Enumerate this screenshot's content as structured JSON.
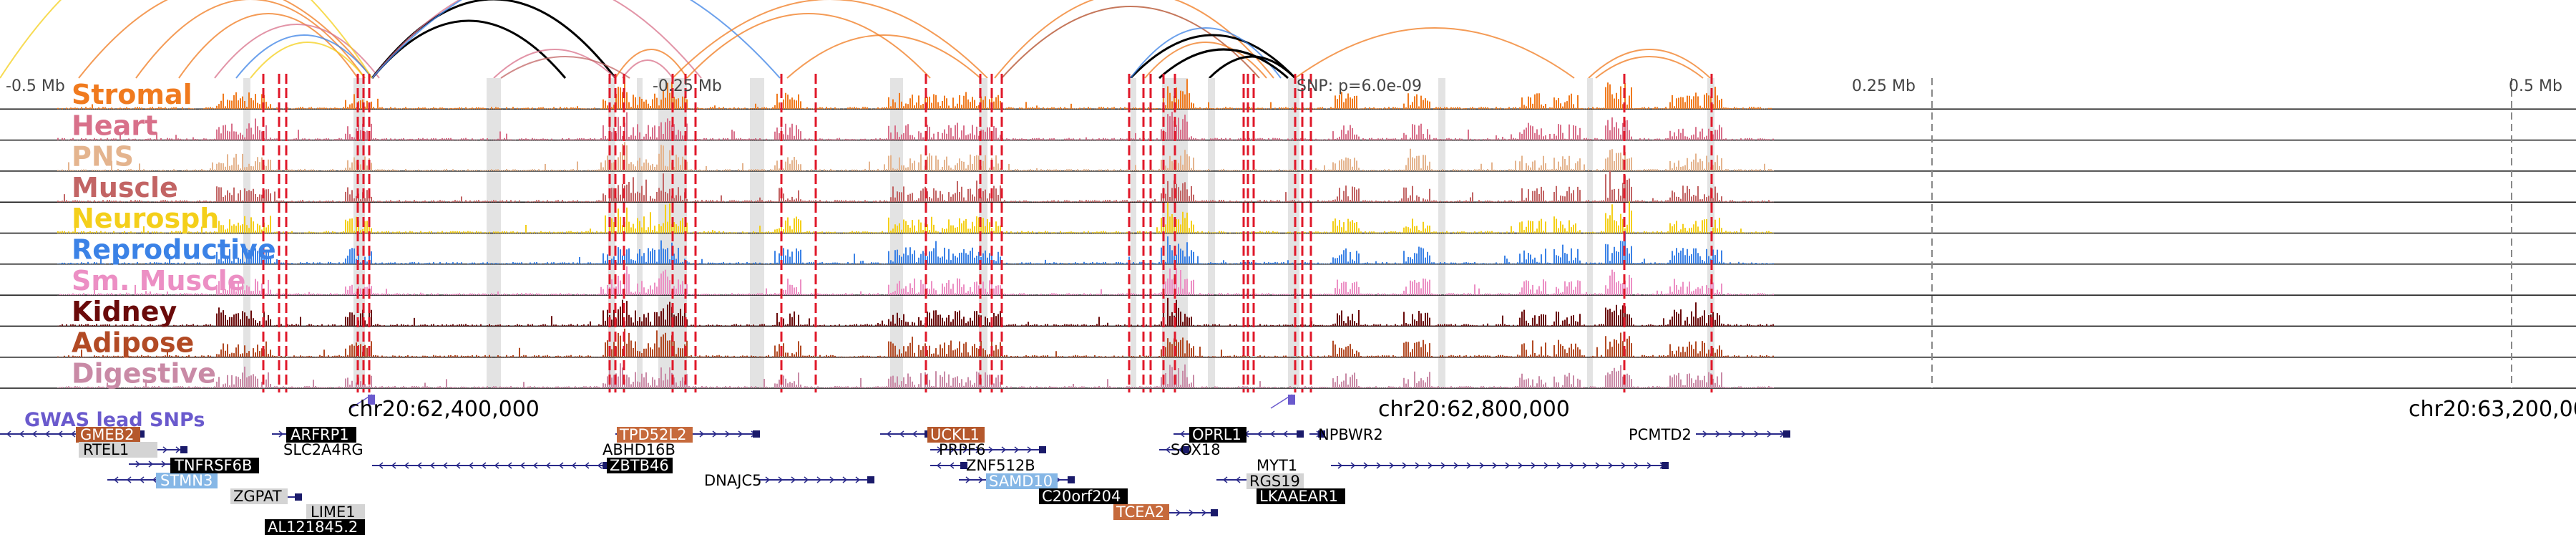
{
  "browser": {
    "scale_labels": {
      "left": "-0.5 Mb",
      "mid_left": "-0.25 Mb",
      "mid_right": "0.25 Mb",
      "right": "0.5 Mb"
    },
    "snp_label": "SNP: p=6.0e-09",
    "gwas_label": "GWAS lead SNPs",
    "coords": [
      "chr20:62,400,000",
      "chr20:62,800,000",
      "chr20:63,200,000"
    ]
  },
  "tracks": [
    {
      "name": "Stromal",
      "color": "#f07a1e"
    },
    {
      "name": "Heart",
      "color": "#d8708a"
    },
    {
      "name": "PNS",
      "color": "#e4b48e"
    },
    {
      "name": "Muscle",
      "color": "#c26464"
    },
    {
      "name": "Neurosph",
      "color": "#f4cf1a"
    },
    {
      "name": "Reproductive",
      "color": "#3b82e6"
    },
    {
      "name": "Sm. Muscle",
      "color": "#ec8fc4"
    },
    {
      "name": "Kidney",
      "color": "#6a0a0a"
    },
    {
      "name": "Adipose",
      "color": "#b24a24"
    },
    {
      "name": "Digestive",
      "color": "#c98aa6"
    }
  ],
  "genes": [
    {
      "name": "GMEB2",
      "style": "orange"
    },
    {
      "name": "RTEL1",
      "style": "gray"
    },
    {
      "name": "STMN3",
      "style": "lightblue"
    },
    {
      "name": "TNFRSF6B",
      "style": "black"
    },
    {
      "name": "ARFRP1",
      "style": "black"
    },
    {
      "name": "SLC2A4RG",
      "style": "plain"
    },
    {
      "name": "ZGPAT",
      "style": "gray"
    },
    {
      "name": "LIME1",
      "style": "gray"
    },
    {
      "name": "AL121845.2",
      "style": "black"
    },
    {
      "name": "TPD52L2",
      "style": "orange"
    },
    {
      "name": "ABHD16B",
      "style": "plain"
    },
    {
      "name": "ZBTB46",
      "style": "black"
    },
    {
      "name": "DNAJC5",
      "style": "plain"
    },
    {
      "name": "UCKL1",
      "style": "orange"
    },
    {
      "name": "PRPF6",
      "style": "plain"
    },
    {
      "name": "ZNF512B",
      "style": "plain"
    },
    {
      "name": "SAMD10",
      "style": "lightblue"
    },
    {
      "name": "C20orf204",
      "style": "black"
    },
    {
      "name": "TCEA2",
      "style": "orange"
    },
    {
      "name": "OPRL1",
      "style": "black"
    },
    {
      "name": "SOX18",
      "style": "plain"
    },
    {
      "name": "NPBWR2",
      "style": "plain"
    },
    {
      "name": "MYT1",
      "style": "plain"
    },
    {
      "name": "RGS19",
      "style": "gray"
    },
    {
      "name": "LKAAEAR1",
      "style": "black"
    },
    {
      "name": "PCMTD2",
      "style": "plain"
    }
  ]
}
